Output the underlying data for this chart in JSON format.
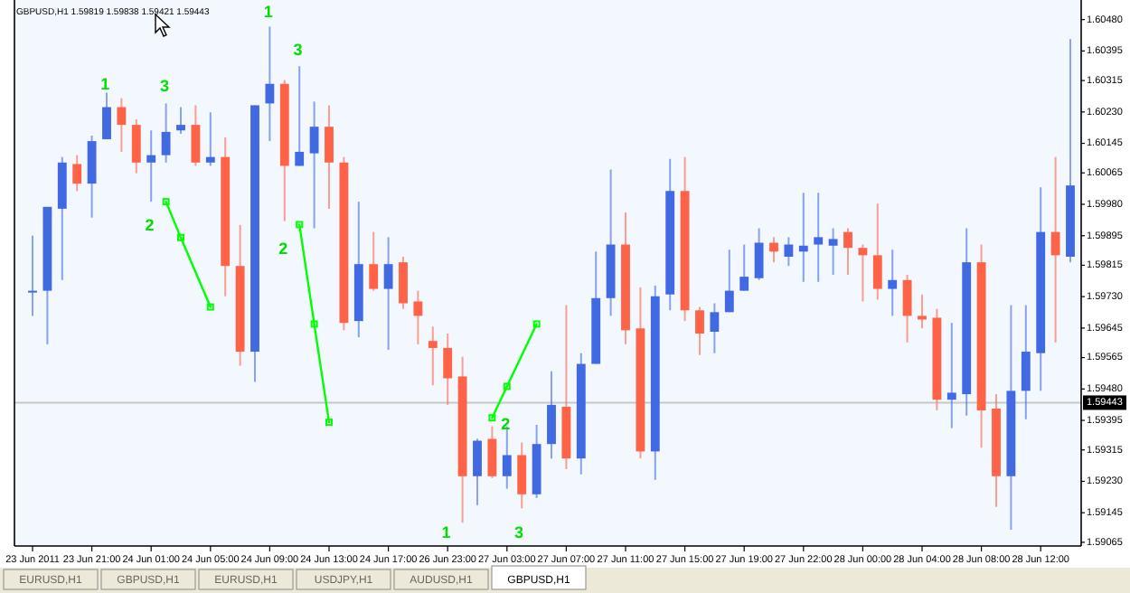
{
  "chart_data": {
    "type": "candlestick",
    "title": "GBPUSD,H1  1.59819 1.59838 1.59421 1.59443",
    "categories": [
      "23 Jun 2011",
      null,
      null,
      null,
      "23 Jun 21:00",
      null,
      null,
      null,
      "24 Jun 01:00",
      null,
      null,
      null,
      "24 Jun 05:00",
      null,
      null,
      null,
      "24 Jun 09:00",
      null,
      null,
      null,
      "24 Jun 13:00",
      null,
      null,
      null,
      "24 Jun 17:00",
      null,
      null,
      null,
      "26 Jun 23:00",
      null,
      null,
      null,
      "27 Jun 03:00",
      null,
      null,
      null,
      "27 Jun 07:00",
      null,
      null,
      null,
      "27 Jun 11:00",
      null,
      null,
      null,
      "27 Jun 15:00",
      null,
      null,
      null,
      "27 Jun 19:00",
      null,
      null,
      null,
      "27 Jun 22:00",
      null,
      null,
      null,
      "28 Jun 00:00",
      null,
      null,
      null,
      "28 Jun 04:00",
      null,
      null,
      null,
      "28 Jun 08:00",
      null,
      null,
      null,
      "28 Jun 12:00",
      null,
      null
    ],
    "ohlc": [
      [
        1.59741,
        1.59895,
        1.59678,
        1.59746
      ],
      [
        1.59746,
        1.59973,
        1.59601,
        1.59973
      ],
      [
        1.59968,
        1.60108,
        1.59775,
        1.60093
      ],
      [
        1.60089,
        1.60113,
        1.60016,
        1.60036
      ],
      [
        1.60036,
        1.60166,
        1.59944,
        1.60151
      ],
      [
        1.60156,
        1.60282,
        1.60156,
        1.60243
      ],
      [
        1.60243,
        1.60267,
        1.60122,
        1.60195
      ],
      [
        1.60195,
        1.6021,
        1.60064,
        1.60093
      ],
      [
        1.60093,
        1.6018,
        1.59987,
        1.60113
      ],
      [
        1.60113,
        1.60253,
        1.60093,
        1.60176
      ],
      [
        1.6018,
        1.60243,
        1.60171,
        1.60195
      ],
      [
        1.60195,
        1.60248,
        1.60084,
        1.60093
      ],
      [
        1.60093,
        1.60229,
        1.60084,
        1.60108
      ],
      [
        1.60108,
        1.60161,
        1.59731,
        1.59813
      ],
      [
        1.59813,
        1.59924,
        1.59543,
        1.59581
      ],
      [
        1.59581,
        1.60248,
        1.59499,
        1.60248
      ],
      [
        1.60253,
        1.60461,
        1.60151,
        1.60306
      ],
      [
        1.60306,
        1.60316,
        1.59934,
        1.60084
      ],
      [
        1.60084,
        1.60354,
        1.60084,
        1.60122
      ],
      [
        1.60118,
        1.60258,
        1.59915,
        1.6019
      ],
      [
        1.6019,
        1.60248,
        1.59968,
        1.60093
      ],
      [
        1.60093,
        1.60108,
        1.59639,
        1.59659
      ],
      [
        1.59664,
        1.59987,
        1.5962,
        1.59818
      ],
      [
        1.59818,
        1.59905,
        1.59746,
        1.59751
      ],
      [
        1.59751,
        1.59891,
        1.59586,
        1.59818
      ],
      [
        1.59823,
        1.59838,
        1.59697,
        1.59712
      ],
      [
        1.59717,
        1.59746,
        1.59601,
        1.59678
      ],
      [
        1.5961,
        1.59649,
        1.5949,
        1.59591
      ],
      [
        1.59591,
        1.5963,
        1.59437,
        1.59509
      ],
      [
        1.59514,
        1.59567,
        1.59118,
        1.59244
      ],
      [
        1.59244,
        1.59345,
        1.59166,
        1.5934
      ],
      [
        1.59345,
        1.59379,
        1.59239,
        1.59244
      ],
      [
        1.59244,
        1.59379,
        1.5921,
        1.59301
      ],
      [
        1.59301,
        1.59335,
        1.59157,
        1.59195
      ],
      [
        1.59195,
        1.59383,
        1.59185,
        1.59331
      ],
      [
        1.59331,
        1.59528,
        1.59292,
        1.59437
      ],
      [
        1.59432,
        1.59707,
        1.59263,
        1.59292
      ],
      [
        1.59292,
        1.59577,
        1.59249,
        1.59548
      ],
      [
        1.59548,
        1.59852,
        1.59548,
        1.59726
      ],
      [
        1.59726,
        1.60074,
        1.59678,
        1.59871
      ],
      [
        1.59871,
        1.59958,
        1.59601,
        1.59639
      ],
      [
        1.59644,
        1.59755,
        1.59292,
        1.59311
      ],
      [
        1.59311,
        1.5976,
        1.59234,
        1.59731
      ],
      [
        1.59736,
        1.60103,
        1.59693,
        1.60016
      ],
      [
        1.60016,
        1.60108,
        1.59664,
        1.59693
      ],
      [
        1.59693,
        1.59702,
        1.59572,
        1.5963
      ],
      [
        1.59635,
        1.59712,
        1.59577,
        1.59688
      ],
      [
        1.59688,
        1.59857,
        1.59688,
        1.59746
      ],
      [
        1.59746,
        1.59871,
        1.59746,
        1.59784
      ],
      [
        1.5978,
        1.59915,
        1.59775,
        1.59876
      ],
      [
        1.59876,
        1.59891,
        1.59823,
        1.59852
      ],
      [
        1.59838,
        1.59891,
        1.59813,
        1.59871
      ],
      [
        1.59852,
        1.60011,
        1.5977,
        1.59868
      ],
      [
        1.59871,
        1.60011,
        1.5977,
        1.59891
      ],
      [
        1.59868,
        1.59915,
        1.59789,
        1.59886
      ],
      [
        1.59905,
        1.59915,
        1.59789,
        1.59862
      ],
      [
        1.59862,
        1.59871,
        1.59717,
        1.59842
      ],
      [
        1.59842,
        1.59982,
        1.59722,
        1.59751
      ],
      [
        1.59751,
        1.59857,
        1.59678,
        1.59775
      ],
      [
        1.59775,
        1.59789,
        1.59606,
        1.59678
      ],
      [
        1.59678,
        1.59736,
        1.59644,
        1.59668
      ],
      [
        1.59673,
        1.59697,
        1.59422,
        1.59451
      ],
      [
        1.59451,
        1.59659,
        1.59374,
        1.5947
      ],
      [
        1.59466,
        1.59915,
        1.59408,
        1.59823
      ],
      [
        1.59823,
        1.59871,
        1.59321,
        1.59422
      ],
      [
        1.59427,
        1.59466,
        1.59161,
        1.59244
      ],
      [
        1.59244,
        1.59707,
        1.59099,
        1.59475
      ],
      [
        1.59475,
        1.59707,
        1.59398,
        1.59581
      ],
      [
        1.59577,
        1.60026,
        1.59475,
        1.59905
      ],
      [
        1.59905,
        1.60108,
        1.59606,
        1.59842
      ],
      [
        1.59838,
        1.60427,
        1.59823,
        1.60031
      ]
    ],
    "colors": [
      "#4169e1",
      "#4169e1",
      "#4169e1",
      "#ff6347",
      "#4169e1",
      "#4169e1",
      "#ff6347",
      "#ff6347",
      "#4169e1",
      "#4169e1",
      "#4169e1",
      "#ff6347",
      "#4169e1",
      "#ff6347",
      "#ff6347",
      "#4169e1",
      "#4169e1",
      "#ff6347",
      "#4169e1",
      "#4169e1",
      "#ff6347",
      "#ff6347",
      "#4169e1",
      "#ff6347",
      "#4169e1",
      "#ff6347",
      "#ff6347",
      "#ff6347",
      "#ff6347",
      "#ff6347",
      "#4169e1",
      "#ff6347",
      "#4169e1",
      "#ff6347",
      "#4169e1",
      "#4169e1",
      "#ff6347",
      "#4169e1",
      "#4169e1",
      "#4169e1",
      "#ff6347",
      "#ff6347",
      "#4169e1",
      "#4169e1",
      "#ff6347",
      "#ff6347",
      "#4169e1",
      "#4169e1",
      "#4169e1",
      "#4169e1",
      "#ff6347",
      "#4169e1",
      "#4169e1",
      "#4169e1",
      "#4169e1",
      "#ff6347",
      "#ff6347",
      "#ff6347",
      "#4169e1",
      "#ff6347",
      "#ff6347",
      "#ff6347",
      "#4169e1",
      "#4169e1",
      "#ff6347",
      "#ff6347",
      "#4169e1",
      "#4169e1",
      "#4169e1",
      "#ff6347",
      "#4169e1"
    ],
    "series": [
      {
        "type": "line",
        "color": "#00ff00",
        "values": [
          null,
          null,
          null,
          null,
          null,
          null,
          null,
          null,
          null,
          1.59987,
          1.5989,
          null,
          1.59702,
          null,
          null,
          null,
          null,
          null,
          null,
          null,
          null,
          null,
          null,
          null,
          null,
          null,
          null,
          null,
          null,
          null,
          null,
          null,
          null,
          null,
          null,
          null,
          null,
          null,
          null,
          null,
          null,
          null,
          null,
          null,
          null,
          null,
          null,
          null,
          null,
          null,
          null,
          null,
          null,
          null,
          null,
          null,
          null,
          null,
          null,
          null,
          null,
          null,
          null,
          null,
          null,
          null,
          null,
          null,
          null,
          null,
          null
        ]
      },
      {
        "type": "line",
        "color": "#00ff00",
        "values": [
          null,
          null,
          null,
          null,
          null,
          null,
          null,
          null,
          null,
          null,
          null,
          null,
          null,
          null,
          null,
          null,
          null,
          null,
          1.59925,
          1.59656,
          1.5939,
          null,
          null,
          null,
          null,
          null,
          null,
          null,
          null,
          null,
          null,
          null,
          null,
          null,
          null,
          null,
          null,
          null,
          null,
          null,
          null,
          null,
          null,
          null,
          null,
          null,
          null,
          null,
          null,
          null,
          null,
          null,
          null,
          null,
          null,
          null,
          null,
          null,
          null,
          null,
          null,
          null,
          null,
          null,
          null,
          null,
          null,
          null,
          null,
          null,
          null
        ]
      },
      {
        "type": "line",
        "color": "#00ff00",
        "values": [
          null,
          null,
          null,
          null,
          null,
          null,
          null,
          null,
          null,
          null,
          null,
          null,
          null,
          null,
          null,
          null,
          null,
          null,
          null,
          null,
          null,
          null,
          null,
          null,
          null,
          null,
          null,
          null,
          null,
          null,
          null,
          1.59402,
          1.59487,
          null,
          1.59656,
          null,
          null,
          null,
          null,
          null,
          null,
          null,
          null,
          null,
          null,
          null,
          null,
          null,
          null,
          null,
          null,
          null,
          null,
          null,
          null,
          null,
          null,
          null,
          null,
          null,
          null,
          null,
          null,
          null,
          null,
          null,
          null,
          null,
          null,
          null,
          null
        ]
      }
    ],
    "marker": "square",
    "ylim": [
      1.59055,
      1.60533
    ],
    "yticks": [
      {
        "value": 1.6048,
        "label": "1.60480"
      },
      1.60395,
      1.60315,
      {
        "value": 1.6023,
        "label": "1.60230"
      },
      1.60145,
      1.60065,
      {
        "value": 1.5998,
        "label": "1.59980"
      },
      1.59895,
      1.59815,
      {
        "value": 1.5973,
        "label": "1.59730"
      },
      1.59645,
      1.59565,
      {
        "value": 1.5948,
        "label": "1.59480"
      },
      1.59395,
      1.59315,
      {
        "value": 1.5923,
        "label": "1.59230"
      },
      1.59145,
      1.59065
    ],
    "ref_lines": [
      {
        "axis": "y",
        "value": 1.59443,
        "label": "1.59443",
        "color": "#c8c8c8"
      }
    ],
    "annotations": [
      "1",
      "3",
      "2",
      "1",
      "3",
      "2",
      "2",
      "1",
      "3",
      "EURUSD,H1",
      "GBPUSD,H1",
      "EURUSD,H1",
      "USDJPY,H1",
      "AUDUSD,H1",
      "GBPUSD,H1"
    ]
  }
}
